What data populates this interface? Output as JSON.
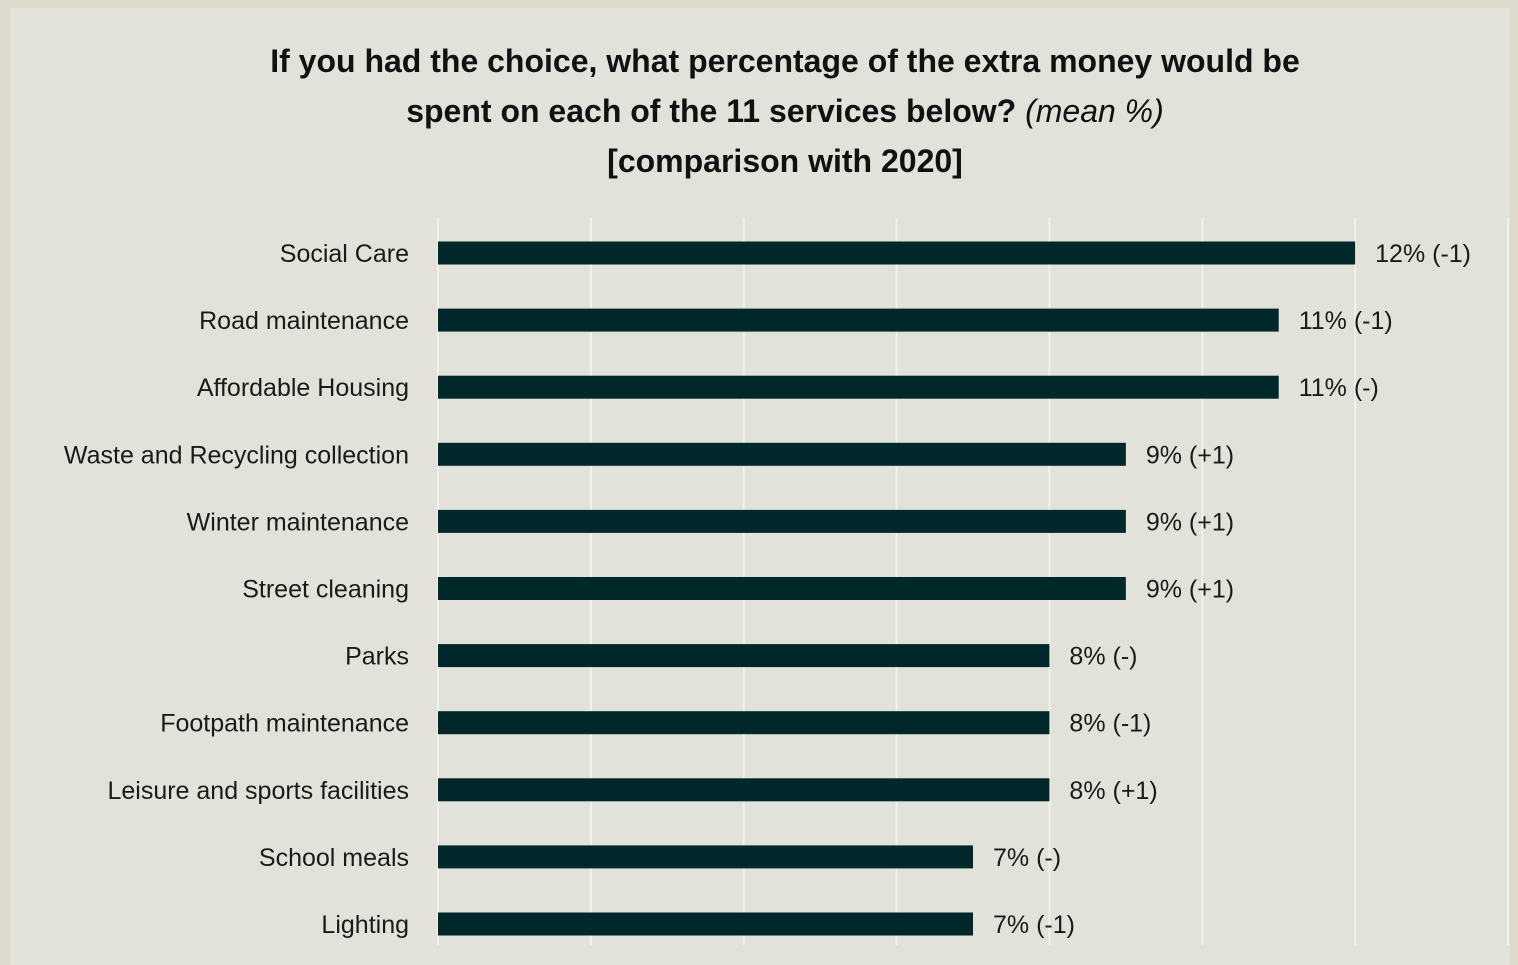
{
  "chart_data": {
    "type": "bar",
    "orientation": "horizontal",
    "title": {
      "line1": "If you had the choice, what percentage of the extra money would be",
      "line2": "spent on each of the 11 services below?",
      "line2_italic": "(mean %)",
      "line3": "[comparison with 2020]"
    },
    "categories": [
      "Social Care",
      "Road maintenance",
      "Affordable Housing",
      "Waste and Recycling collection",
      "Winter maintenance",
      "Street cleaning",
      "Parks",
      "Footpath maintenance",
      "Leisure and sports facilities",
      "School meals",
      "Lighting"
    ],
    "values": [
      12,
      11,
      11,
      9,
      9,
      9,
      8,
      8,
      8,
      7,
      7
    ],
    "data_labels": [
      "12% (-1)",
      "11% (-1)",
      "11% (-)",
      "9% (+1)",
      "9% (+1)",
      "9% (+1)",
      "8% (-)",
      "8% (-1)",
      "8% (+1)",
      "7% (-)",
      "7% (-1)"
    ],
    "xlim": [
      0,
      14
    ],
    "grid": true,
    "bar_color": "#00272a",
    "grid_color": "#f2f2ec"
  }
}
